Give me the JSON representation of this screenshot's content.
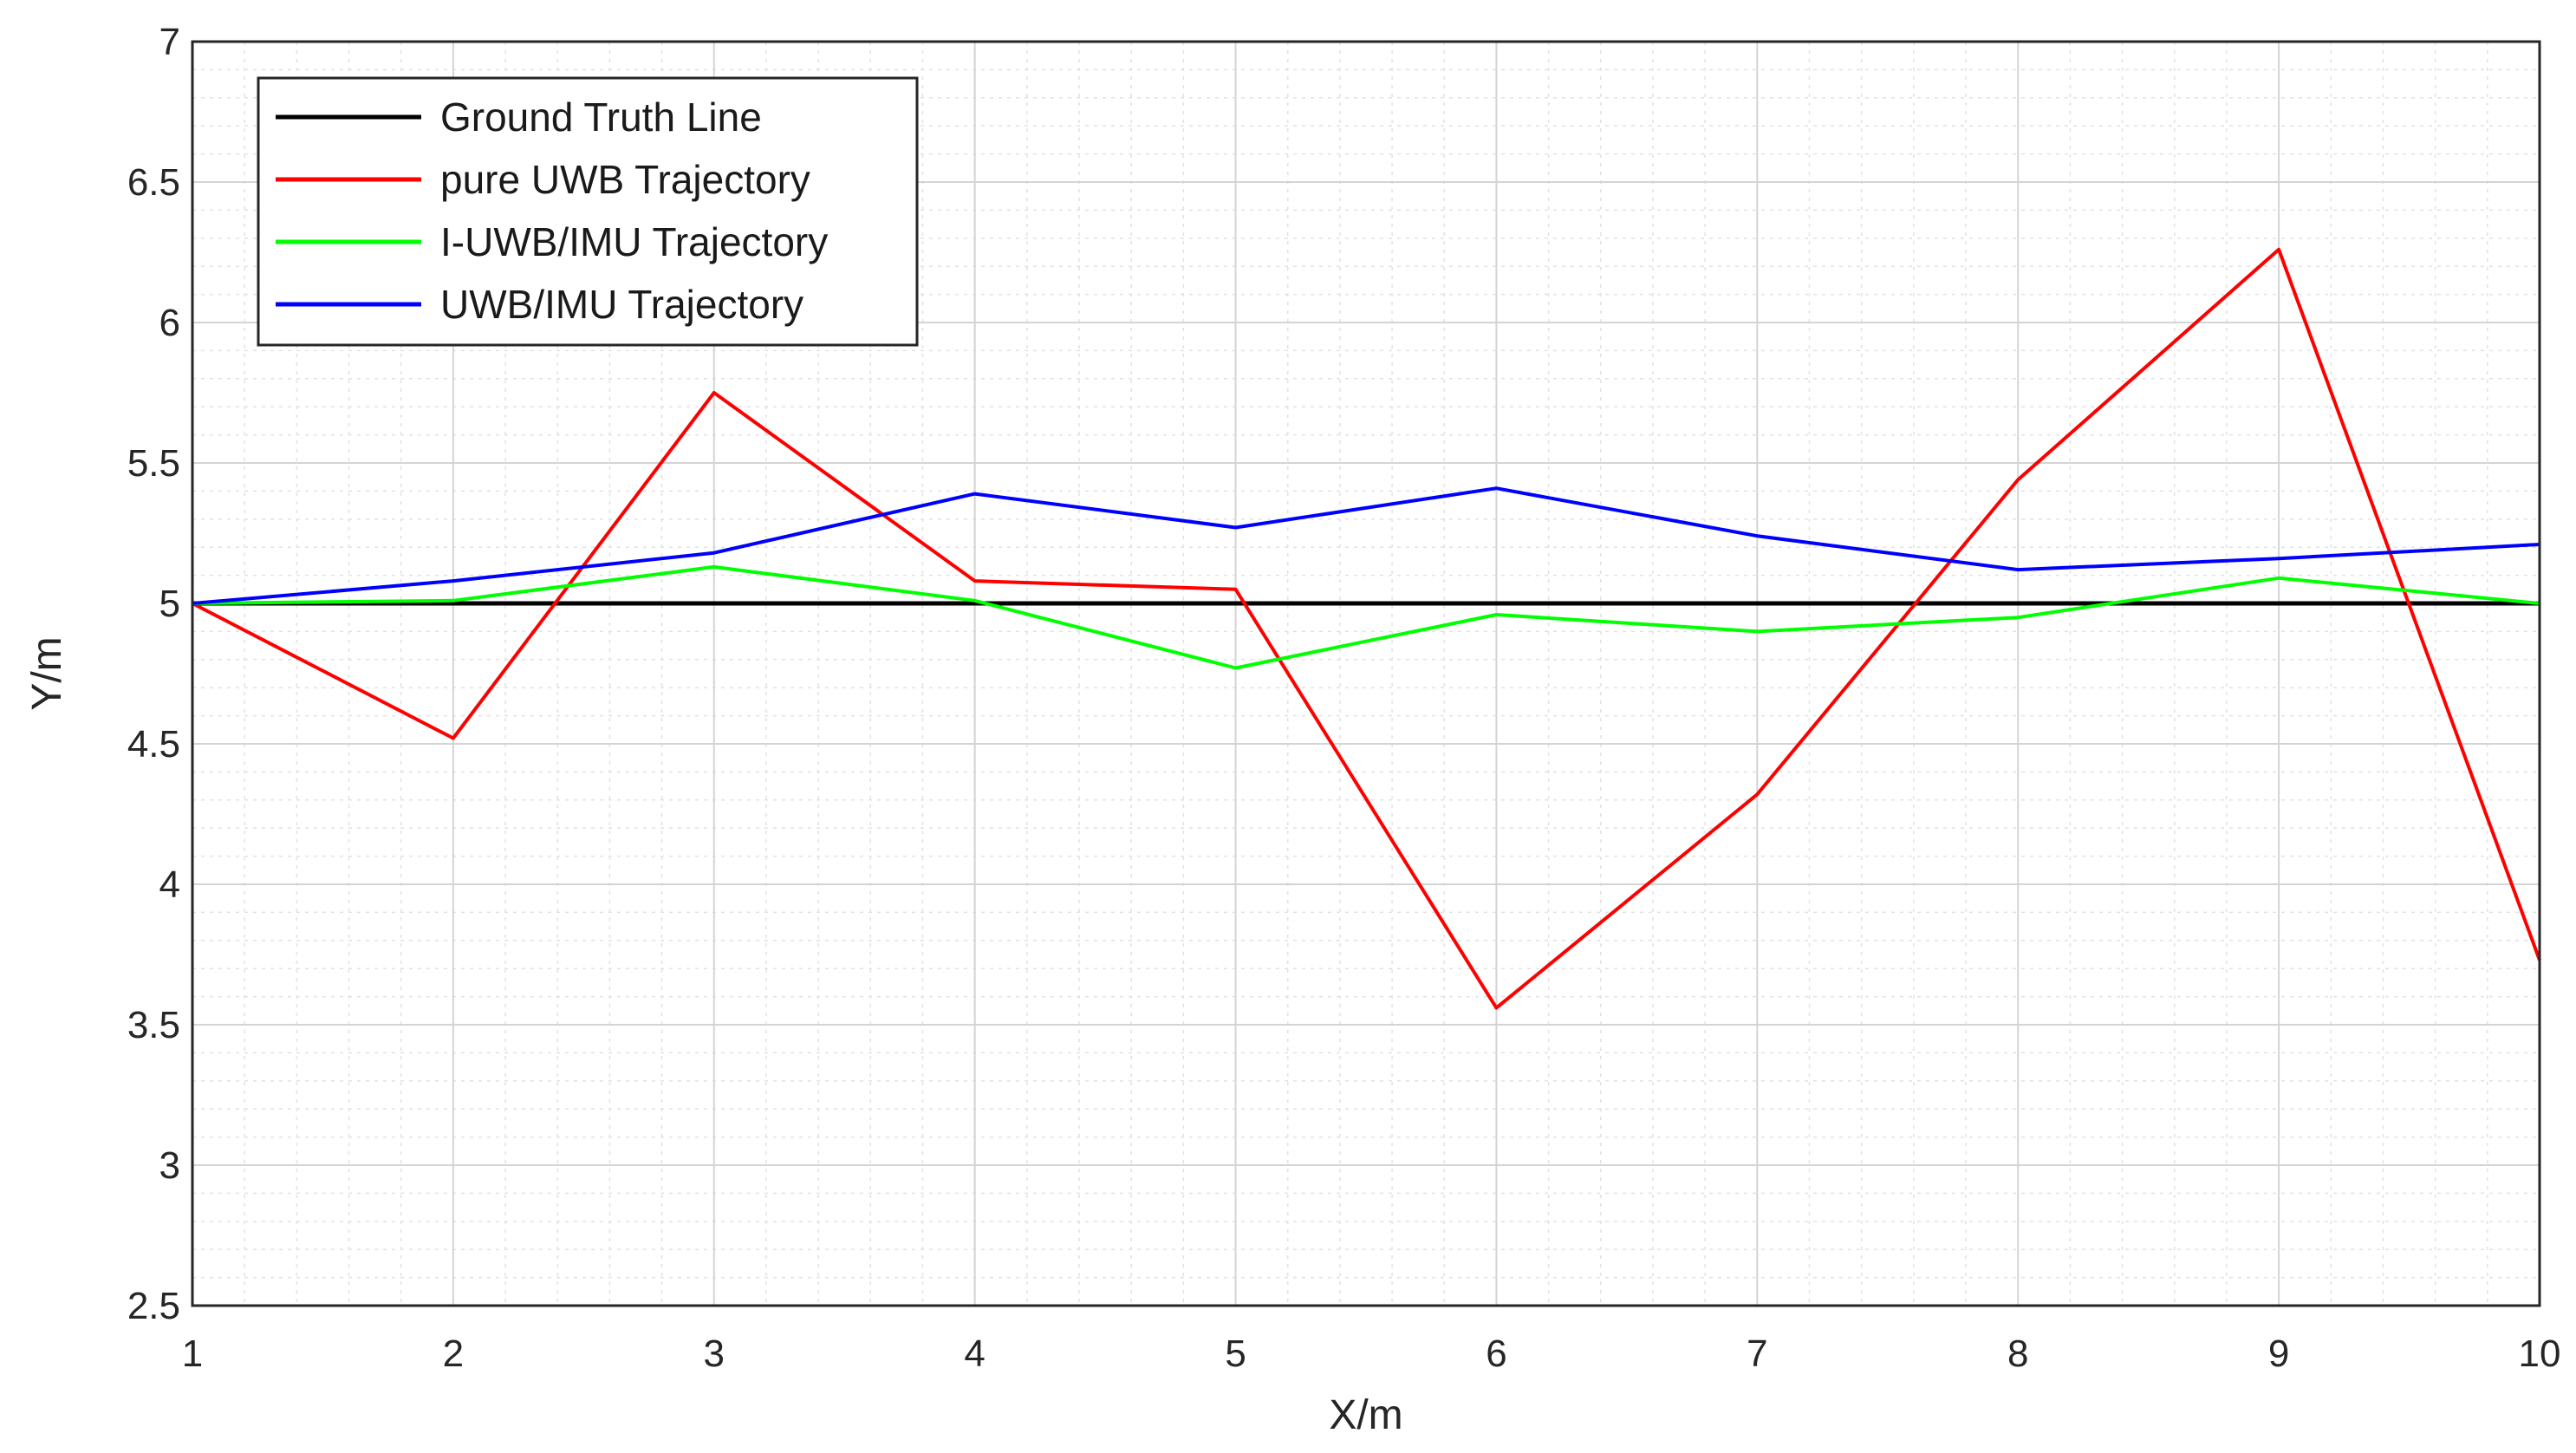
{
  "chart_data": {
    "type": "line",
    "xlabel": "X/m",
    "ylabel": "Y/m",
    "xlim": [
      1,
      10
    ],
    "ylim": [
      2.5,
      7
    ],
    "xticks": [
      1,
      2,
      3,
      4,
      5,
      6,
      7,
      8,
      9,
      10
    ],
    "yticks": [
      2.5,
      3,
      3.5,
      4,
      4.5,
      5,
      5.5,
      6,
      6.5,
      7
    ],
    "grid": true,
    "minor_grid": true,
    "legend_position": "top-left",
    "x": [
      1,
      2,
      3,
      4,
      5,
      6,
      7,
      8,
      9,
      10
    ],
    "series": [
      {
        "name": "Ground Truth Line",
        "color": "#000000",
        "values": [
          5,
          5,
          5,
          5,
          5,
          5,
          5,
          5,
          5,
          5
        ]
      },
      {
        "name": "pure UWB Trajectory",
        "color": "#ff0000",
        "values": [
          5.0,
          4.52,
          5.75,
          5.08,
          5.05,
          3.56,
          4.32,
          5.44,
          6.26,
          3.73
        ]
      },
      {
        "name": "I-UWB/IMU Trajectory",
        "color": "#00ff00",
        "values": [
          5.0,
          5.01,
          5.13,
          5.01,
          4.77,
          4.96,
          4.9,
          4.95,
          5.09,
          5.0
        ]
      },
      {
        "name": "UWB/IMU Trajectory",
        "color": "#0000ff",
        "values": [
          5.0,
          5.08,
          5.18,
          5.39,
          5.27,
          5.41,
          5.24,
          5.12,
          5.16,
          5.21
        ]
      }
    ]
  }
}
